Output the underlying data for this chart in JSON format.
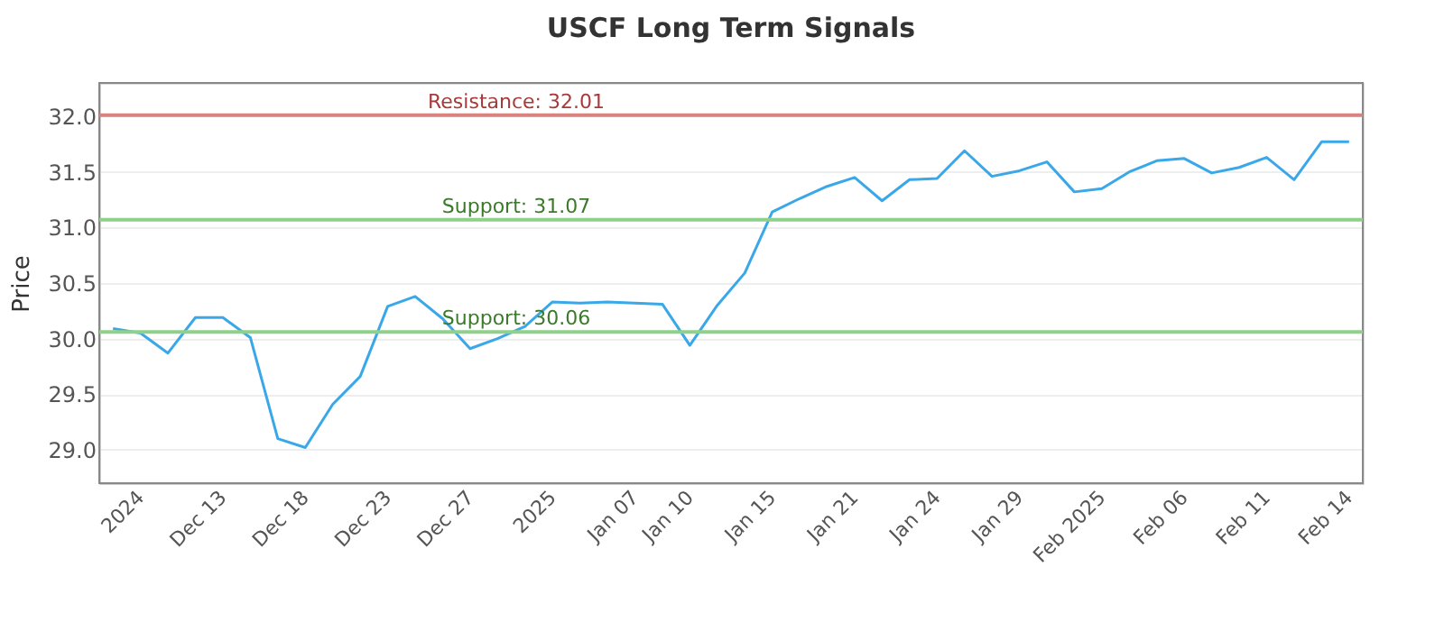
{
  "chart_data": {
    "type": "line",
    "title": "USCF Long Term Signals",
    "ylabel": "Price",
    "categories": [
      null,
      "2024",
      null,
      null,
      "Dec 13",
      null,
      null,
      "Dec 18",
      null,
      null,
      "Dec 23",
      null,
      null,
      "Dec 27",
      null,
      null,
      "2025",
      null,
      null,
      "Jan 07",
      null,
      "Jan 10",
      null,
      null,
      "Jan 15",
      null,
      null,
      "Jan 21",
      null,
      null,
      "Jan 24",
      null,
      null,
      "Jan 29",
      null,
      null,
      "Feb 2025",
      null,
      null,
      "Feb 06",
      null,
      null,
      "Feb 11",
      null,
      null,
      "Feb 14"
    ],
    "series": [
      {
        "color": "#3aa8e8",
        "values": [
          30.09,
          30.05,
          29.87,
          30.19,
          30.19,
          30.01,
          29.1,
          29.02,
          29.41,
          29.66,
          30.29,
          30.38,
          30.18,
          29.91,
          30.0,
          30.11,
          30.33,
          30.32,
          30.33,
          30.32,
          30.31,
          29.94,
          30.3,
          30.59,
          31.14,
          31.26,
          31.37,
          31.45,
          31.24,
          31.43,
          31.44,
          31.69,
          31.46,
          31.51,
          31.59,
          31.32,
          31.35,
          31.5,
          31.6,
          31.62,
          31.49,
          31.54,
          31.63,
          31.43,
          31.77,
          31.77
        ]
      }
    ],
    "ylim": [
      28.7,
      32.3
    ],
    "yticks": [
      {
        "value": 29,
        "label": "29.0"
      },
      {
        "value": 29.5,
        "label": "29.5"
      },
      {
        "value": 30,
        "label": "30.0"
      },
      {
        "value": 30.5,
        "label": "30.5"
      },
      {
        "value": 31,
        "label": "31.0"
      },
      {
        "value": 31.5,
        "label": "31.5"
      },
      {
        "value": 32,
        "label": "32.0"
      }
    ],
    "ref_lines": [
      {
        "axis": "y",
        "value": 32.01,
        "label": "Resistance: 32.01",
        "color": "#d9837f"
      },
      {
        "axis": "y",
        "value": 31.07,
        "label": "Support: 31.07",
        "color": "#8fd18a"
      },
      {
        "axis": "y",
        "value": 30.06,
        "label": "Support: 30.06",
        "color": "#8fd18a"
      }
    ],
    "grid": "y",
    "marker": "none",
    "line_style": "solid"
  }
}
